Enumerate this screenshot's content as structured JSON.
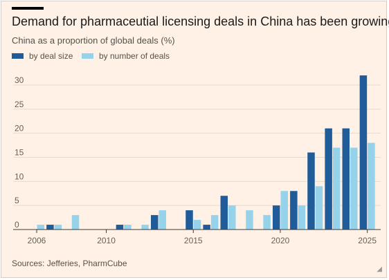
{
  "title": "Demand for pharmaceutial licensing deals in China has been growing",
  "subtitle": "China as a proportion of global deals (%)",
  "source": "Sources: Jefferies, PharmCube",
  "chart_data": {
    "type": "bar",
    "title": "Demand for pharmaceutial licensing deals in China has been growing",
    "subtitle": "China as a proportion of global deals (%)",
    "ylabel": "",
    "xlabel": "",
    "ylim": [
      0,
      33
    ],
    "yticks": [
      0,
      5,
      10,
      15,
      20,
      25,
      30
    ],
    "xticks": [
      2006,
      2010,
      2015,
      2020,
      2025
    ],
    "grid": true,
    "legend_position": "top-left",
    "categories": [
      2006,
      2007,
      2008,
      2009,
      2010,
      2011,
      2012,
      2013,
      2014,
      2015,
      2016,
      2017,
      2018,
      2019,
      2020,
      2021,
      2022,
      2023,
      2024,
      2025
    ],
    "series": [
      {
        "name": "by deal size",
        "color": "#1f5c99",
        "values": [
          0,
          1,
          0,
          0,
          0,
          1,
          0,
          3,
          0,
          4,
          1,
          7,
          0,
          0,
          5,
          8,
          16,
          21,
          21,
          32
        ]
      },
      {
        "name": "by number of deals",
        "color": "#96d3ea",
        "values": [
          1,
          1,
          3,
          0,
          0,
          1,
          1,
          4,
          0,
          2,
          3,
          5,
          4,
          3,
          8,
          5,
          9,
          17,
          17,
          18
        ]
      }
    ]
  },
  "colors": {
    "background": "#fff1e5",
    "grid": "#e6d9ce",
    "baseline": "#3d3a37"
  }
}
